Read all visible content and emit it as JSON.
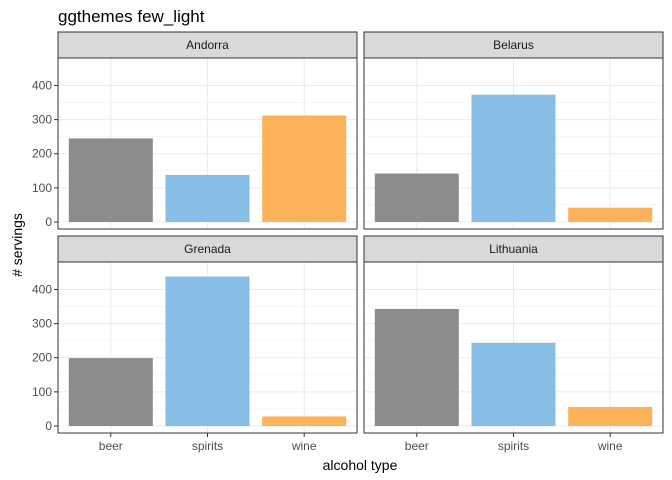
{
  "chart_data": {
    "type": "bar",
    "title": "ggthemes few_light",
    "xlabel": "alcohol type",
    "ylabel": "# servings",
    "ylim": [
      0,
      460
    ],
    "yticks": [
      0,
      100,
      200,
      300,
      400
    ],
    "categories": [
      "beer",
      "spirits",
      "wine"
    ],
    "colors": {
      "beer": "#8c8c8c",
      "spirits": "#88bde6",
      "wine": "#fbb258"
    },
    "grid": true,
    "facets": [
      {
        "name": "Andorra",
        "values": [
          245,
          138,
          312
        ]
      },
      {
        "name": "Belarus",
        "values": [
          142,
          373,
          42
        ]
      },
      {
        "name": "Grenada",
        "values": [
          199,
          438,
          28
        ]
      },
      {
        "name": "Lithuania",
        "values": [
          343,
          244,
          56
        ]
      }
    ]
  }
}
